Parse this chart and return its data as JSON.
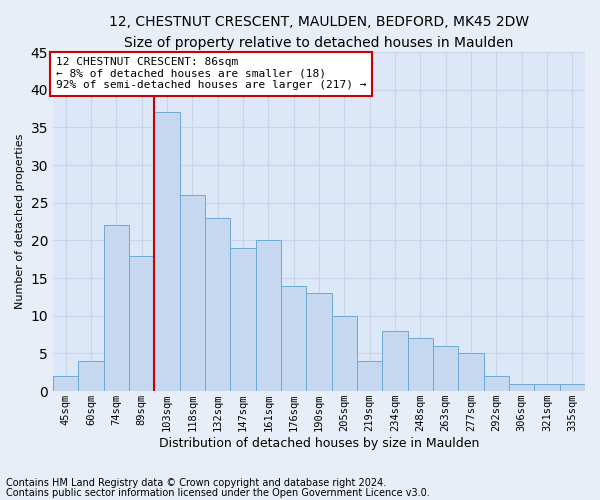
{
  "title1": "12, CHESTNUT CRESCENT, MAULDEN, BEDFORD, MK45 2DW",
  "title2": "Size of property relative to detached houses in Maulden",
  "xlabel": "Distribution of detached houses by size in Maulden",
  "ylabel": "Number of detached properties",
  "categories": [
    "45sqm",
    "60sqm",
    "74sqm",
    "89sqm",
    "103sqm",
    "118sqm",
    "132sqm",
    "147sqm",
    "161sqm",
    "176sqm",
    "190sqm",
    "205sqm",
    "219sqm",
    "234sqm",
    "248sqm",
    "263sqm",
    "277sqm",
    "292sqm",
    "306sqm",
    "321sqm",
    "335sqm"
  ],
  "values": [
    2,
    4,
    22,
    18,
    37,
    26,
    23,
    19,
    20,
    14,
    13,
    10,
    4,
    8,
    7,
    6,
    5,
    2,
    1,
    1,
    1
  ],
  "bar_color": "#c5d8f0",
  "bar_edge_color": "#6aaad4",
  "vline_color": "#cc0000",
  "vline_x": 3.5,
  "annotation_text": "12 CHESTNUT CRESCENT: 86sqm\n← 8% of detached houses are smaller (18)\n92% of semi-detached houses are larger (217) →",
  "annotation_box_color": "#ffffff",
  "annotation_box_edge_color": "#cc0000",
  "grid_color": "#c8d4e8",
  "fig_background": "#e8eef8",
  "plot_background": "#dce8f8",
  "ylim": [
    0,
    45
  ],
  "yticks": [
    0,
    5,
    10,
    15,
    20,
    25,
    30,
    35,
    40,
    45
  ],
  "footnote1": "Contains HM Land Registry data © Crown copyright and database right 2024.",
  "footnote2": "Contains public sector information licensed under the Open Government Licence v3.0.",
  "title1_fontsize": 10,
  "title2_fontsize": 9,
  "xlabel_fontsize": 9,
  "ylabel_fontsize": 8,
  "tick_fontsize": 7.5,
  "annotation_fontsize": 8,
  "footnote_fontsize": 7
}
